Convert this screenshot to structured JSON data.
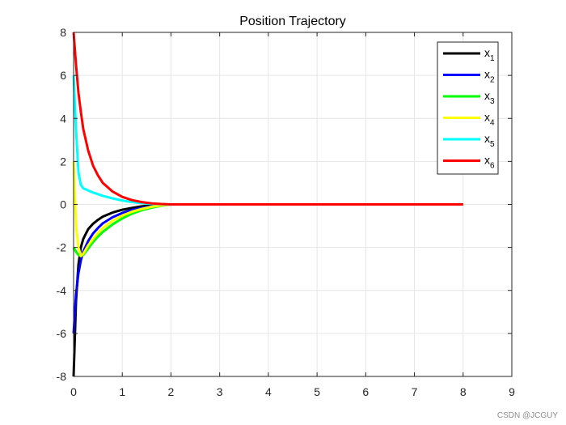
{
  "chart_data": {
    "type": "line",
    "title": "Position Trajectory",
    "xlabel": "",
    "ylabel": "",
    "xlim": [
      0,
      9
    ],
    "ylim": [
      -8,
      8
    ],
    "xticks": [
      0,
      1,
      2,
      3,
      4,
      5,
      6,
      7,
      8,
      9
    ],
    "yticks": [
      -8,
      -6,
      -4,
      -2,
      0,
      2,
      4,
      6,
      8
    ],
    "grid": true,
    "legend_position": "top-right",
    "series": [
      {
        "name": "x",
        "subscript": "1",
        "color": "#000000",
        "x": [
          0,
          0.05,
          0.1,
          0.15,
          0.2,
          0.3,
          0.4,
          0.5,
          0.6,
          0.8,
          1.0,
          1.2,
          1.4,
          1.6,
          1.8,
          2.0,
          8.0
        ],
        "y": [
          -8,
          -4.5,
          -2.8,
          -2.0,
          -1.6,
          -1.15,
          -0.9,
          -0.72,
          -0.57,
          -0.38,
          -0.25,
          -0.16,
          -0.09,
          -0.05,
          -0.02,
          0,
          0
        ]
      },
      {
        "name": "x",
        "subscript": "2",
        "color": "#0000ff",
        "x": [
          0,
          0.05,
          0.1,
          0.15,
          0.2,
          0.3,
          0.4,
          0.5,
          0.6,
          0.8,
          1.0,
          1.2,
          1.4,
          1.6,
          1.8,
          2.0,
          8.0
        ],
        "y": [
          -6,
          -4.2,
          -3.2,
          -2.6,
          -2.2,
          -1.7,
          -1.35,
          -1.1,
          -0.88,
          -0.6,
          -0.4,
          -0.26,
          -0.16,
          -0.09,
          -0.04,
          0,
          0
        ]
      },
      {
        "name": "x",
        "subscript": "3",
        "color": "#00ff00",
        "x": [
          0,
          0.05,
          0.1,
          0.15,
          0.2,
          0.3,
          0.4,
          0.5,
          0.6,
          0.8,
          1.0,
          1.2,
          1.4,
          1.6,
          1.8,
          2.0,
          8.0
        ],
        "y": [
          -2,
          -2.2,
          -2.35,
          -2.4,
          -2.35,
          -2.05,
          -1.75,
          -1.5,
          -1.28,
          -0.93,
          -0.65,
          -0.43,
          -0.27,
          -0.15,
          -0.06,
          0,
          0
        ]
      },
      {
        "name": "x",
        "subscript": "4",
        "color": "#ffff00",
        "x": [
          0,
          0.03,
          0.06,
          0.1,
          0.15,
          0.2,
          0.3,
          0.4,
          0.5,
          0.6,
          0.8,
          1.0,
          1.2,
          1.4,
          1.6,
          1.8,
          2.0,
          8.0
        ],
        "y": [
          2,
          0.2,
          -1.2,
          -2.0,
          -2.4,
          -2.3,
          -1.9,
          -1.6,
          -1.33,
          -1.1,
          -0.76,
          -0.52,
          -0.34,
          -0.21,
          -0.11,
          -0.04,
          0,
          0
        ]
      },
      {
        "name": "x",
        "subscript": "5",
        "color": "#00ffff",
        "x": [
          0,
          0.05,
          0.1,
          0.15,
          0.2,
          0.3,
          0.4,
          0.5,
          0.6,
          0.8,
          1.0,
          1.2,
          1.4,
          1.6,
          1.8,
          2.0,
          8.0
        ],
        "y": [
          6,
          3.5,
          1.5,
          0.9,
          0.75,
          0.65,
          0.55,
          0.48,
          0.4,
          0.28,
          0.18,
          0.11,
          0.06,
          0.03,
          0.01,
          0,
          0
        ]
      },
      {
        "name": "x",
        "subscript": "6",
        "color": "#ff0000",
        "x": [
          0,
          0.05,
          0.1,
          0.15,
          0.2,
          0.3,
          0.4,
          0.5,
          0.6,
          0.8,
          1.0,
          1.2,
          1.4,
          1.6,
          1.8,
          2.0,
          8.0
        ],
        "y": [
          8,
          6.5,
          5.2,
          4.3,
          3.5,
          2.5,
          1.8,
          1.35,
          1.0,
          0.6,
          0.35,
          0.2,
          0.11,
          0.05,
          0.02,
          0,
          0
        ]
      }
    ]
  },
  "watermark": "CSDN @JCGUY"
}
